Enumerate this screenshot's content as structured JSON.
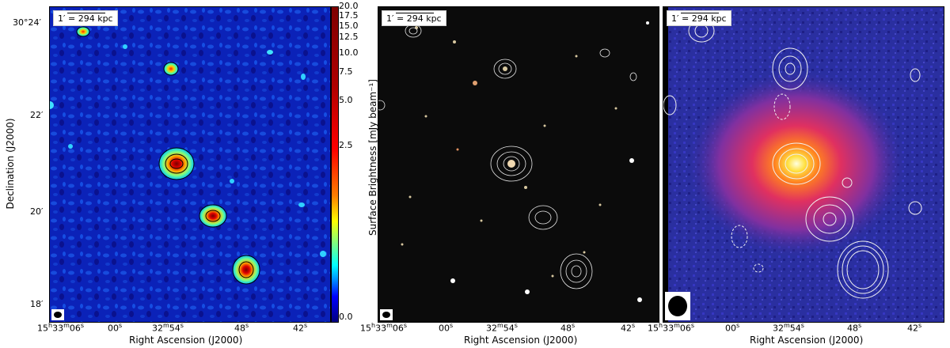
{
  "panels": [
    {
      "scale_label": "1′ = 294 kpc",
      "image": "radio continuum map (jet colormap) with black contours"
    },
    {
      "scale_label": "1′ = 294 kpc",
      "image": "optical colour composite with white radio contours"
    },
    {
      "scale_label": "1′ = 294 kpc",
      "image": "X-ray emission map with white radio contours"
    }
  ],
  "axes": {
    "xlabel": "Right Ascension (J2000)",
    "ylabel": "Declination (J2000)",
    "x_ticks": [
      "15h33m06s",
      "00s",
      "32m54s",
      "48s",
      "42s"
    ],
    "x_ticks_display": [
      {
        "main": "15",
        "h": "h",
        "m1": "33",
        "mm": "m",
        "s1": "06",
        "ss": "s"
      },
      {
        "s1": "00",
        "ss": "s"
      },
      {
        "m1": "32",
        "mm": "m",
        "s1": "54",
        "ss": "s"
      },
      {
        "s1": "48",
        "ss": "s"
      },
      {
        "s1": "42",
        "ss": "s"
      }
    ],
    "y_ticks": [
      "30°24′",
      "22′",
      "20′",
      "18′"
    ]
  },
  "colorbar": {
    "label": "Surface Brightness [mJy beam⁻¹]",
    "ticks": [
      "20.0",
      "17.5",
      "15.0",
      "12.5",
      "10.0",
      "7.5",
      "5.0",
      "2.5",
      "0.0"
    ]
  },
  "colors": {
    "radio_background": "#0a1fb0",
    "xray_background": "#2b2ba8",
    "optical_background": "#0b0b0b"
  }
}
